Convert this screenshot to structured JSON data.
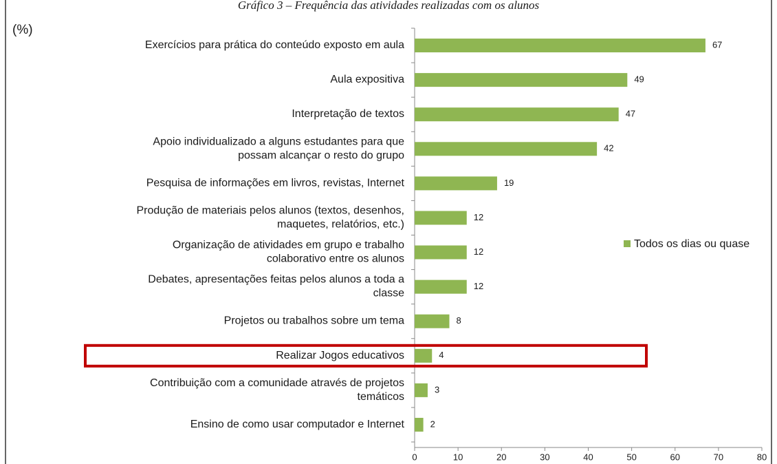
{
  "chart_data": {
    "type": "bar",
    "orientation": "horizontal",
    "title": "Gráfico 3 – Frequência das atividades realizadas com os alunos",
    "unit_label": "(%)",
    "categories": [
      [
        "Exercícios para prática do conteúdo exposto em aula"
      ],
      [
        "Aula expositiva"
      ],
      [
        "Interpretação de textos"
      ],
      [
        "Apoio individualizado a alguns estudantes para que",
        "possam alcançar o resto do grupo"
      ],
      [
        "Pesquisa de informações em livros, revistas, Internet"
      ],
      [
        "Produção de materiais pelos alunos (textos, desenhos,",
        "maquetes, relatórios, etc.)"
      ],
      [
        "Organização de atividades em grupo e trabalho",
        "colaborativo entre os alunos"
      ],
      [
        "Debates, apresentações feitas pelos alunos a toda a",
        "classe"
      ],
      [
        "Projetos ou trabalhos sobre um tema"
      ],
      [
        "Realizar Jogos educativos"
      ],
      [
        "Contribuição com a comunidade através de projetos",
        "temáticos"
      ],
      [
        "Ensino de como usar computador e Internet"
      ]
    ],
    "series": [
      {
        "name": "Todos os dias ou quase",
        "color": "#8fb652",
        "values": [
          67,
          49,
          47,
          42,
          19,
          12,
          12,
          12,
          8,
          4,
          3,
          2
        ]
      }
    ],
    "xlim": [
      0,
      80
    ],
    "xticks": [
      0,
      10,
      20,
      30,
      40,
      50,
      60,
      70,
      80
    ],
    "legend": "right",
    "highlight_index": 9,
    "highlight_color": "#c00000"
  }
}
